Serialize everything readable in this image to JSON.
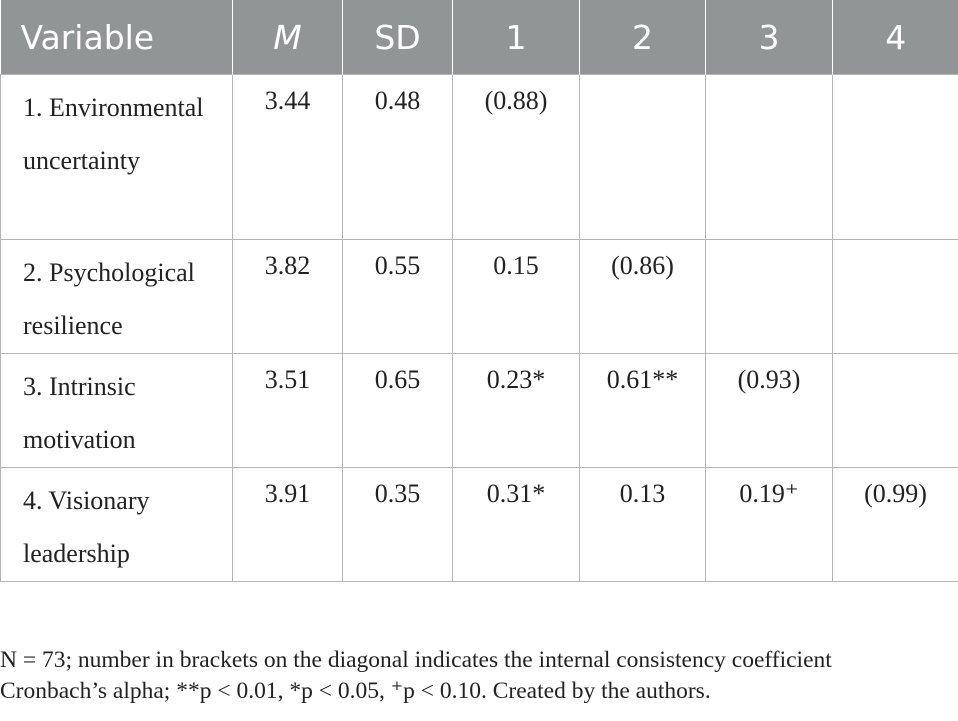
{
  "table": {
    "headers": [
      "Variable",
      "M",
      "SD",
      "1",
      "2",
      "3",
      "4"
    ],
    "rows": [
      {
        "variable": "1. Environmental uncertainty",
        "m": "3.44",
        "sd": "0.48",
        "c1": "(0.88)",
        "c2": "",
        "c3": "",
        "c4": ""
      },
      {
        "variable": "2. Psychological resilience",
        "m": "3.82",
        "sd": "0.55",
        "c1": "0.15",
        "c2": "(0.86)",
        "c3": "",
        "c4": ""
      },
      {
        "variable": "3. Intrinsic motivation",
        "m": "3.51",
        "sd": "0.65",
        "c1": "0.23*",
        "c2": "0.61**",
        "c3": "(0.93)",
        "c4": ""
      },
      {
        "variable": "4. Visionary leadership",
        "m": "3.91",
        "sd": "0.35",
        "c1": "0.31*",
        "c2": "0.13",
        "c3": "0.19⁺",
        "c4": "(0.99)"
      }
    ]
  },
  "note": {
    "line1": "N = 73; number in brackets on the diagonal indicates the internal consistency coefficient",
    "line2": "Cronbach’s alpha; **p < 0.01, *p < 0.05, ⁺p < 0.10. Created by the authors."
  }
}
